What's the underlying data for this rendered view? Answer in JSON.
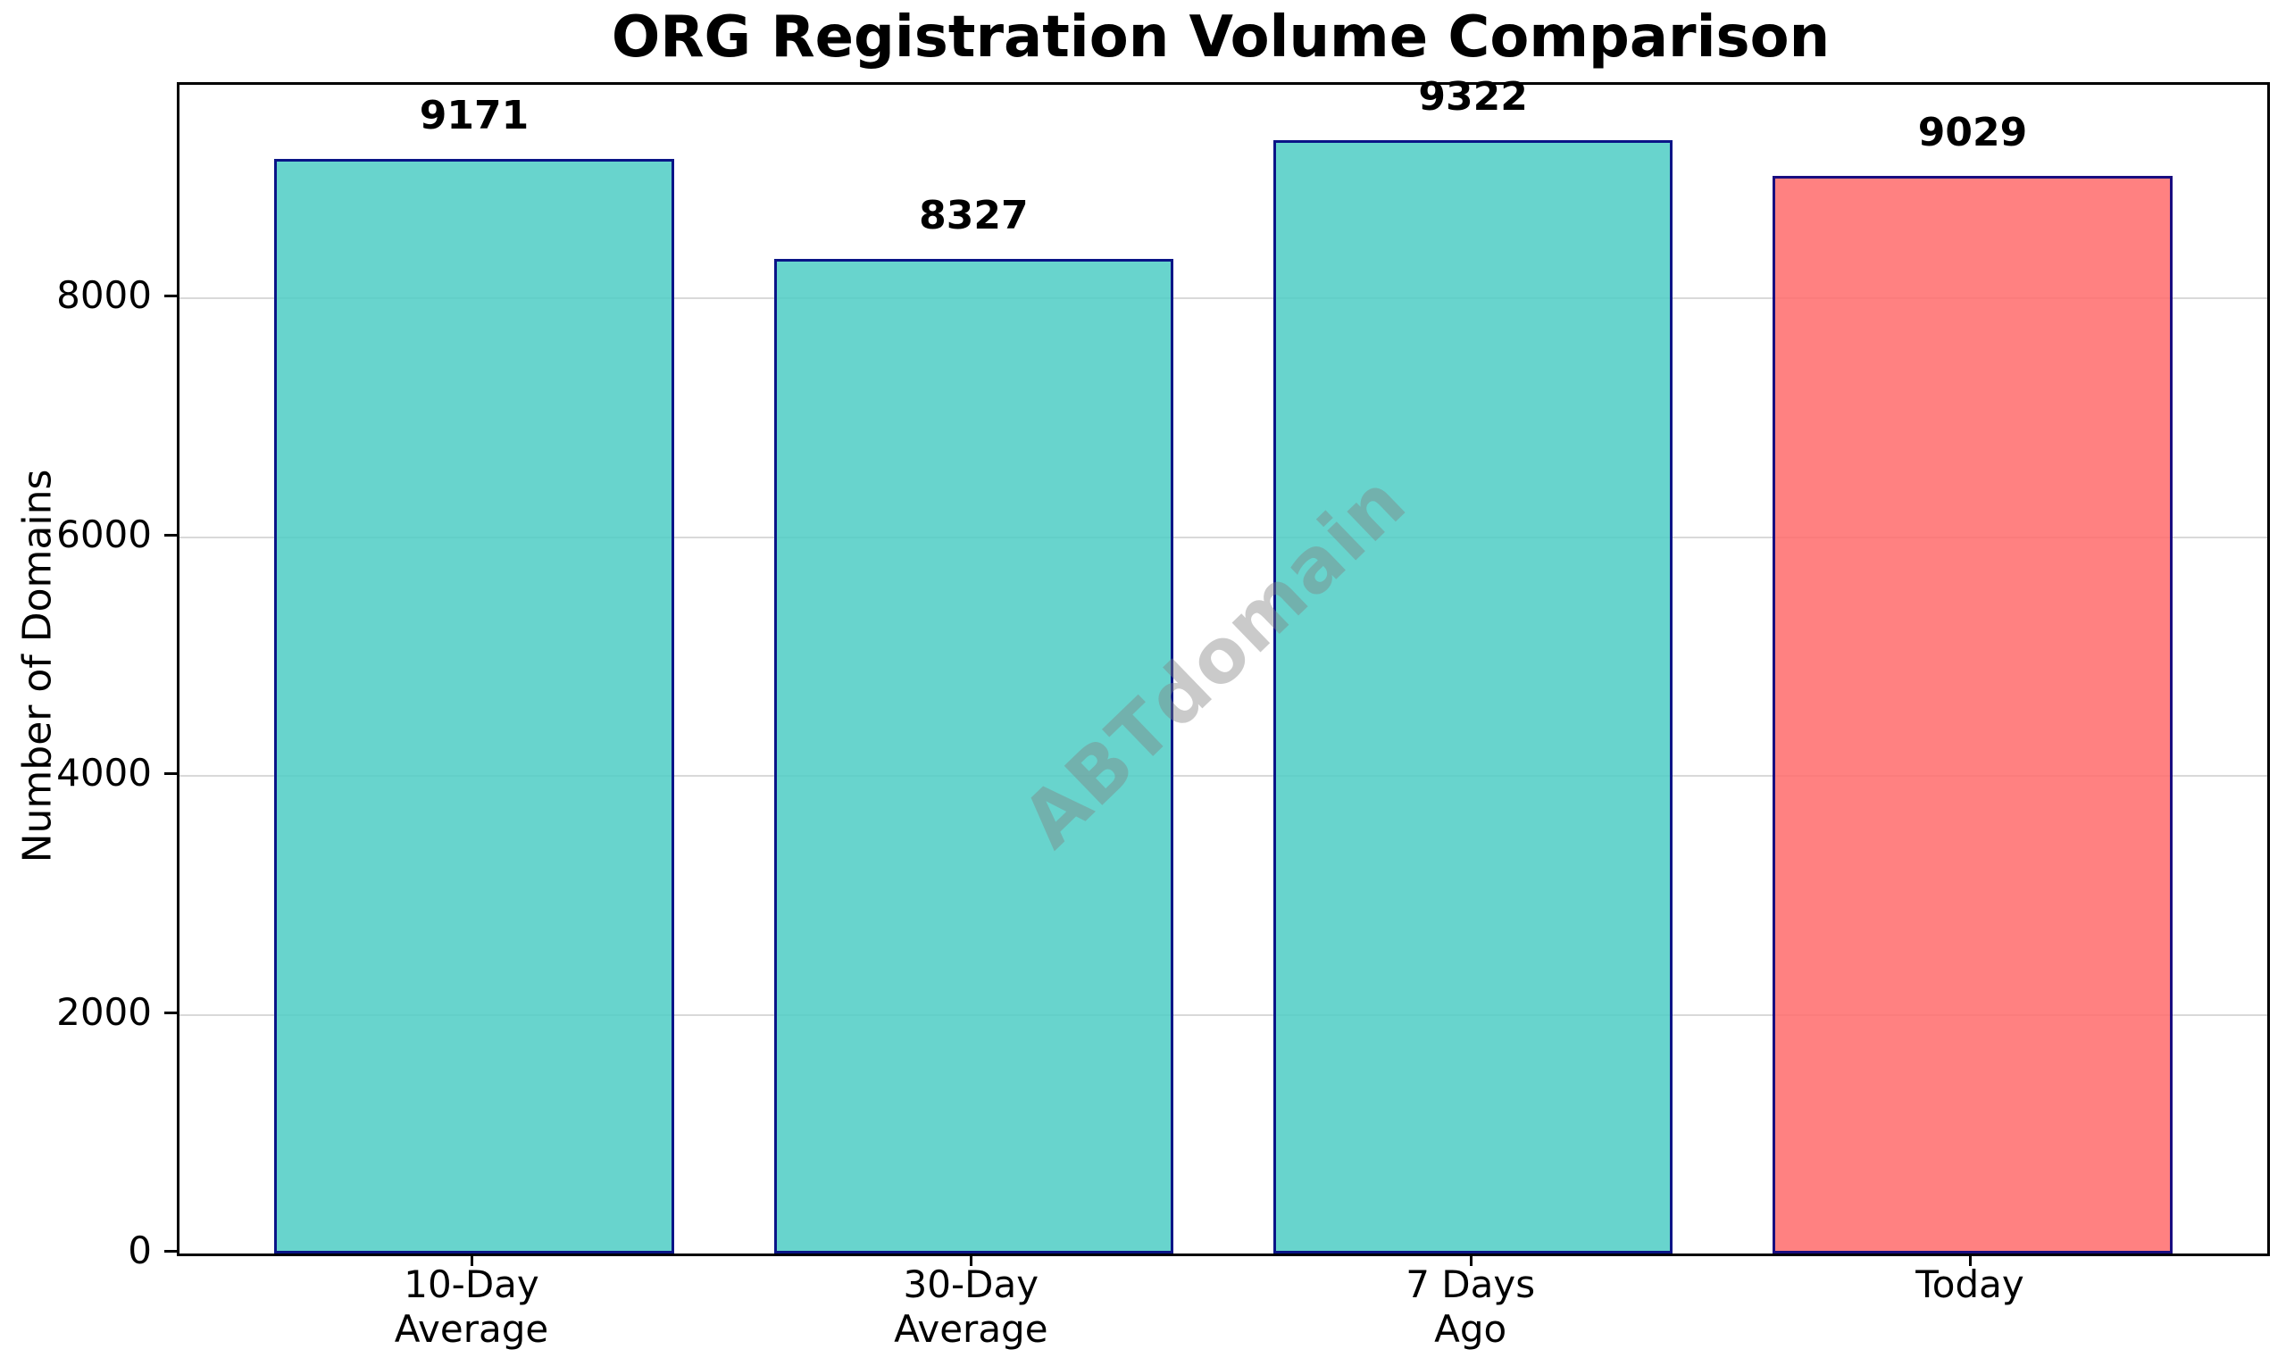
{
  "chart_data": {
    "type": "bar",
    "title": "ORG Registration Volume Comparison",
    "xlabel": "",
    "ylabel": "Number of Domains",
    "categories": [
      [
        "10-Day",
        "Average"
      ],
      [
        "30-Day",
        "Average"
      ],
      [
        "7 Days",
        "Ago"
      ],
      [
        "Today"
      ]
    ],
    "values": [
      9171,
      8327,
      9322,
      9029
    ],
    "bar_value_labels": [
      "9171",
      "8327",
      "9322",
      "9029"
    ],
    "bar_fill_colors": [
      "#4ECDC4",
      "#4ECDC4",
      "#4ECDC4",
      "#FF6B6B"
    ],
    "bar_alpha": 0.85,
    "bar_edge_color": "#000080",
    "ylim": [
      0,
      9788
    ],
    "yticks": [
      0,
      2000,
      4000,
      6000,
      8000
    ],
    "grid": "horizontal-y",
    "gridline_color": "#808080",
    "legend": null,
    "watermark": "ABTdomain"
  }
}
